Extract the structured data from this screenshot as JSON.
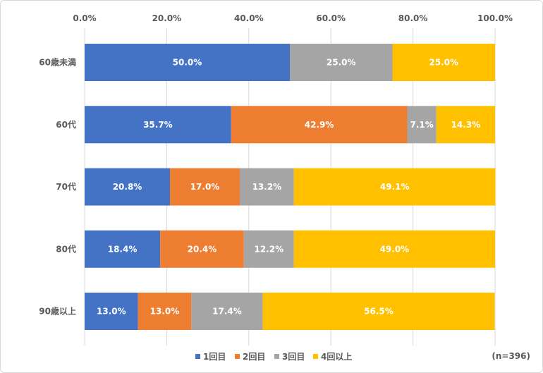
{
  "chart_data": {
    "type": "bar",
    "orientation": "horizontal",
    "stacked": "percent",
    "categories": [
      "60歳未満",
      "60代",
      "70代",
      "80代",
      "90歳以上"
    ],
    "series": [
      {
        "name": "1回目",
        "color": "#4472c4",
        "values": [
          50.0,
          35.7,
          20.8,
          18.4,
          13.0
        ],
        "labels": [
          "50.0%",
          "35.7%",
          "20.8%",
          "18.4%",
          "13.0%"
        ]
      },
      {
        "name": "2回目",
        "color": "#ed7d31",
        "values": [
          0.0,
          42.9,
          17.0,
          20.4,
          13.0
        ],
        "labels": [
          "",
          "42.9%",
          "17.0%",
          "20.4%",
          "13.0%"
        ]
      },
      {
        "name": "3回目",
        "color": "#a5a5a5",
        "values": [
          25.0,
          7.1,
          13.2,
          12.2,
          17.4
        ],
        "labels": [
          "25.0%",
          "7.1%",
          "13.2%",
          "12.2%",
          "17.4%"
        ]
      },
      {
        "name": "4回以上",
        "color": "#ffc000",
        "values": [
          25.0,
          14.3,
          49.1,
          49.0,
          56.5
        ],
        "labels": [
          "25.0%",
          "14.3%",
          "49.1%",
          "49.0%",
          "56.5%"
        ]
      }
    ],
    "xlim": [
      0,
      100
    ],
    "xticks": [
      "0.0%",
      "20.0%",
      "40.0%",
      "60.0%",
      "80.0%",
      "100.0%"
    ],
    "xaxis_position": "top",
    "legend_position": "bottom",
    "grid": true,
    "note": "(n=396)"
  }
}
